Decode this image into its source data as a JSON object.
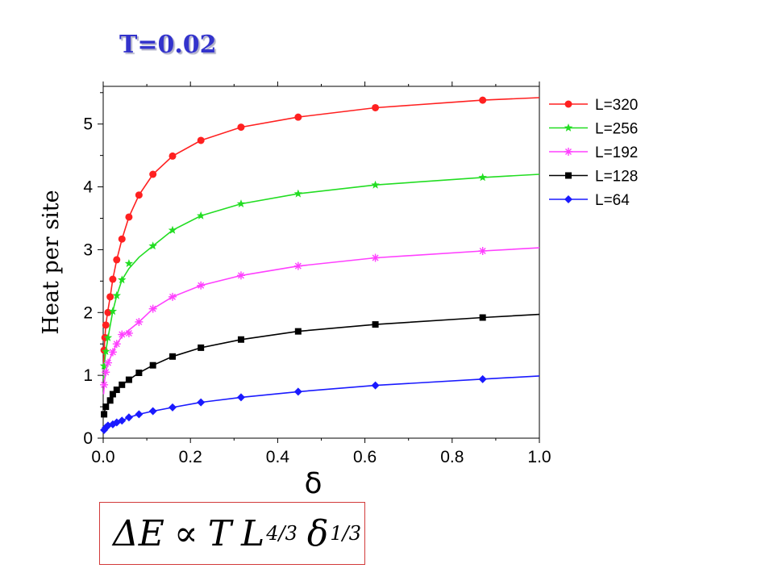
{
  "header": {
    "title": "T=0.02"
  },
  "formula": {
    "delta_e": "ΔE",
    "prop": "∝",
    "T": "T",
    "L": "L",
    "L_exp": "4/3",
    "delta": "δ",
    "delta_exp": "1/3"
  },
  "chart_data": {
    "type": "line",
    "title": "",
    "xlabel": "δ",
    "ylabel": "Heat per site",
    "xlim": [
      0.0,
      1.0
    ],
    "ylim": [
      0,
      5.6
    ],
    "x_ticks": [
      0.0,
      0.2,
      0.4,
      0.6,
      0.8,
      1.0
    ],
    "x_tick_labels": [
      "0.0",
      "0.2",
      "0.4",
      "0.6",
      "0.8",
      "1.0"
    ],
    "y_ticks": [
      0,
      1,
      2,
      3,
      4,
      5
    ],
    "y_tick_labels": [
      "0",
      "1",
      "2",
      "3",
      "4",
      "5"
    ],
    "grid": false,
    "legend_position": "outside-right-top",
    "series": [
      {
        "name": "L=320",
        "color": "#ff2020",
        "marker": "circle",
        "points": [
          [
            0.002,
            1.4
          ],
          [
            0.004,
            1.6
          ],
          [
            0.006,
            1.8
          ],
          [
            0.011,
            2.0
          ],
          [
            0.016,
            2.25
          ],
          [
            0.022,
            2.53
          ],
          [
            0.031,
            2.84
          ],
          [
            0.043,
            3.17
          ],
          [
            0.059,
            3.52
          ],
          [
            0.082,
            3.87
          ],
          [
            0.114,
            4.2
          ],
          [
            0.159,
            4.49
          ],
          [
            0.224,
            4.74
          ],
          [
            0.316,
            4.95
          ],
          [
            0.447,
            5.11
          ],
          [
            0.624,
            5.26
          ],
          [
            0.87,
            5.38
          ]
        ],
        "curve": [
          [
            0.001,
            1.15
          ],
          [
            0.003,
            1.5
          ],
          [
            0.006,
            1.8
          ],
          [
            0.01,
            2.0
          ],
          [
            0.016,
            2.25
          ],
          [
            0.022,
            2.53
          ],
          [
            0.031,
            2.84
          ],
          [
            0.043,
            3.17
          ],
          [
            0.059,
            3.52
          ],
          [
            0.082,
            3.87
          ],
          [
            0.114,
            4.2
          ],
          [
            0.159,
            4.49
          ],
          [
            0.224,
            4.74
          ],
          [
            0.316,
            4.95
          ],
          [
            0.447,
            5.11
          ],
          [
            0.624,
            5.26
          ],
          [
            0.87,
            5.38
          ],
          [
            1.0,
            5.42
          ]
        ]
      },
      {
        "name": "L=256",
        "color": "#22dd22",
        "marker": "star",
        "points": [
          [
            0.002,
            1.15
          ],
          [
            0.006,
            1.38
          ],
          [
            0.011,
            1.6
          ],
          [
            0.022,
            2.02
          ],
          [
            0.031,
            2.27
          ],
          [
            0.043,
            2.52
          ],
          [
            0.059,
            2.78
          ],
          [
            0.114,
            3.06
          ],
          [
            0.159,
            3.31
          ],
          [
            0.224,
            3.54
          ],
          [
            0.316,
            3.73
          ],
          [
            0.447,
            3.89
          ],
          [
            0.624,
            4.03
          ],
          [
            0.87,
            4.15
          ]
        ],
        "curve": [
          [
            0.001,
            0.95
          ],
          [
            0.003,
            1.2
          ],
          [
            0.006,
            1.38
          ],
          [
            0.011,
            1.6
          ],
          [
            0.022,
            2.02
          ],
          [
            0.031,
            2.27
          ],
          [
            0.043,
            2.52
          ],
          [
            0.059,
            2.7
          ],
          [
            0.082,
            2.88
          ],
          [
            0.114,
            3.06
          ],
          [
            0.159,
            3.31
          ],
          [
            0.224,
            3.54
          ],
          [
            0.316,
            3.73
          ],
          [
            0.447,
            3.89
          ],
          [
            0.624,
            4.03
          ],
          [
            0.87,
            4.15
          ],
          [
            1.0,
            4.2
          ]
        ]
      },
      {
        "name": "L=192",
        "color": "#ff40ff",
        "marker": "asterisk",
        "points": [
          [
            0.002,
            0.85
          ],
          [
            0.006,
            1.05
          ],
          [
            0.011,
            1.2
          ],
          [
            0.022,
            1.37
          ],
          [
            0.031,
            1.5
          ],
          [
            0.043,
            1.65
          ],
          [
            0.059,
            1.67
          ],
          [
            0.082,
            1.85
          ],
          [
            0.114,
            2.06
          ],
          [
            0.159,
            2.25
          ],
          [
            0.224,
            2.43
          ],
          [
            0.316,
            2.59
          ],
          [
            0.447,
            2.74
          ],
          [
            0.624,
            2.87
          ],
          [
            0.87,
            2.98
          ]
        ],
        "curve": [
          [
            0.001,
            0.7
          ],
          [
            0.003,
            0.9
          ],
          [
            0.006,
            1.05
          ],
          [
            0.011,
            1.2
          ],
          [
            0.022,
            1.37
          ],
          [
            0.031,
            1.5
          ],
          [
            0.043,
            1.62
          ],
          [
            0.059,
            1.72
          ],
          [
            0.082,
            1.85
          ],
          [
            0.114,
            2.06
          ],
          [
            0.159,
            2.25
          ],
          [
            0.224,
            2.43
          ],
          [
            0.316,
            2.59
          ],
          [
            0.447,
            2.74
          ],
          [
            0.624,
            2.87
          ],
          [
            0.87,
            2.98
          ],
          [
            1.0,
            3.03
          ]
        ]
      },
      {
        "name": "L=128",
        "color": "#000000",
        "marker": "square",
        "points": [
          [
            0.002,
            0.38
          ],
          [
            0.006,
            0.5
          ],
          [
            0.016,
            0.6
          ],
          [
            0.022,
            0.7
          ],
          [
            0.031,
            0.77
          ],
          [
            0.043,
            0.85
          ],
          [
            0.059,
            0.93
          ],
          [
            0.082,
            1.04
          ],
          [
            0.114,
            1.16
          ],
          [
            0.159,
            1.3
          ],
          [
            0.224,
            1.44
          ],
          [
            0.316,
            1.57
          ],
          [
            0.447,
            1.7
          ],
          [
            0.624,
            1.81
          ],
          [
            0.87,
            1.92
          ]
        ],
        "curve": [
          [
            0.001,
            0.35
          ],
          [
            0.003,
            0.42
          ],
          [
            0.006,
            0.5
          ],
          [
            0.011,
            0.55
          ],
          [
            0.016,
            0.6
          ],
          [
            0.022,
            0.7
          ],
          [
            0.031,
            0.77
          ],
          [
            0.043,
            0.85
          ],
          [
            0.059,
            0.93
          ],
          [
            0.082,
            1.04
          ],
          [
            0.114,
            1.16
          ],
          [
            0.159,
            1.3
          ],
          [
            0.224,
            1.44
          ],
          [
            0.316,
            1.57
          ],
          [
            0.447,
            1.7
          ],
          [
            0.624,
            1.81
          ],
          [
            0.87,
            1.92
          ],
          [
            1.0,
            1.97
          ]
        ]
      },
      {
        "name": "L=64",
        "color": "#1a1aff",
        "marker": "diamond",
        "points": [
          [
            0.002,
            0.13
          ],
          [
            0.006,
            0.17
          ],
          [
            0.011,
            0.2
          ],
          [
            0.022,
            0.22
          ],
          [
            0.031,
            0.25
          ],
          [
            0.043,
            0.28
          ],
          [
            0.059,
            0.33
          ],
          [
            0.082,
            0.38
          ],
          [
            0.114,
            0.43
          ],
          [
            0.159,
            0.49
          ],
          [
            0.224,
            0.57
          ],
          [
            0.316,
            0.65
          ],
          [
            0.447,
            0.74
          ],
          [
            0.624,
            0.84
          ],
          [
            0.87,
            0.94
          ]
        ],
        "curve": [
          [
            0.001,
            0.12
          ],
          [
            0.006,
            0.17
          ],
          [
            0.011,
            0.2
          ],
          [
            0.022,
            0.22
          ],
          [
            0.031,
            0.25
          ],
          [
            0.043,
            0.28
          ],
          [
            0.059,
            0.33
          ],
          [
            0.082,
            0.38
          ],
          [
            0.114,
            0.43
          ],
          [
            0.159,
            0.49
          ],
          [
            0.224,
            0.57
          ],
          [
            0.316,
            0.65
          ],
          [
            0.447,
            0.74
          ],
          [
            0.624,
            0.84
          ],
          [
            0.87,
            0.94
          ],
          [
            1.0,
            0.99
          ]
        ]
      }
    ]
  }
}
